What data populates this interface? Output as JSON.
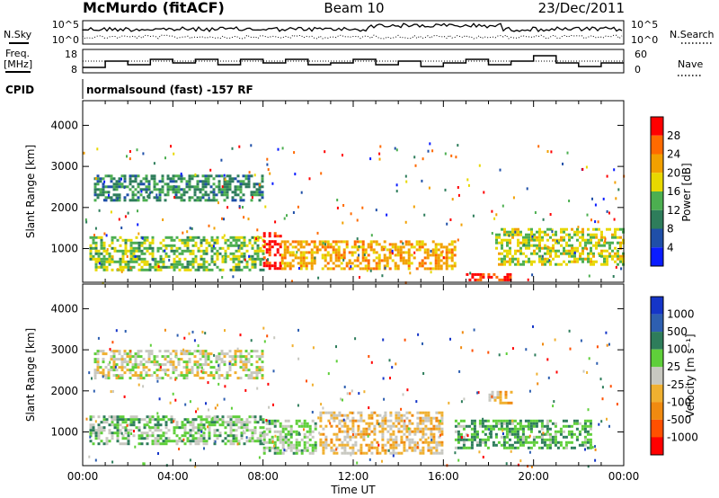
{
  "header": {
    "station": "McMurdo (fitACF)",
    "beam": "Beam 10",
    "date": "23/Dec/2011"
  },
  "noise_panel": {
    "left_label": "N.Sky",
    "left_ticks": [
      "10^5",
      "10^0"
    ],
    "right_label": "N.Search",
    "right_ticks": [
      "10^5",
      "10^0"
    ]
  },
  "freq_panel": {
    "left_label_1": "Freq.",
    "left_label_2": "[MHz]",
    "left_ticks": [
      "18",
      "8"
    ],
    "right_label": "Nave",
    "right_ticks": [
      "60",
      "0"
    ]
  },
  "cpid": {
    "label": "CPID",
    "value": "normalsound (fast) -157 RF"
  },
  "power_colorbar": {
    "title": "Power [dB]",
    "ticks": [
      "28",
      "24",
      "20",
      "16",
      "12",
      "8",
      "4"
    ],
    "colors": [
      "#ff0000",
      "#ff6a00",
      "#f2a000",
      "#e8d800",
      "#4caf50",
      "#2e7d5b",
      "#1f4fa8",
      "#0a1cff"
    ]
  },
  "velocity_colorbar": {
    "title": "Velocity [m s⁻¹]",
    "ticks": [
      "1000",
      "500",
      "100",
      "25",
      "-25",
      "-100",
      "-500",
      "-1000"
    ],
    "colors": [
      "#1535c8",
      "#2e5fb0",
      "#2e7d5b",
      "#5fcf3a",
      "#c8c8c0",
      "#f0b030",
      "#f08a10",
      "#ff5000",
      "#ff0000"
    ]
  },
  "axes": {
    "ylabel": "Slant Range [km]",
    "xlabel": "Time UT",
    "yticks": [
      "4000",
      "3000",
      "2000",
      "1000"
    ],
    "xticks": [
      "00:00",
      "04:00",
      "08:00",
      "12:00",
      "16:00",
      "20:00",
      "00:00"
    ]
  },
  "chart_data": [
    {
      "type": "heatmap",
      "title": "Power",
      "x_range_hours": [
        0,
        24
      ],
      "ylim": [
        180,
        4600
      ],
      "colorbar_range_db": [
        0,
        30
      ],
      "echo_regions": [
        {
          "t_start": 0.3,
          "t_end": 8.0,
          "r_low": 500,
          "r_high": 1300,
          "power_db": 14
        },
        {
          "t_start": 8.0,
          "t_end": 8.8,
          "r_low": 500,
          "r_high": 1400,
          "power_db": 29
        },
        {
          "t_start": 8.8,
          "t_end": 16.5,
          "r_low": 500,
          "r_high": 1200,
          "power_db": 20
        },
        {
          "t_start": 17.0,
          "t_end": 19.0,
          "r_low": 250,
          "r_high": 400,
          "power_db": 28
        },
        {
          "t_start": 0.5,
          "t_end": 8.0,
          "r_low": 2200,
          "r_high": 2800,
          "power_db": 10
        },
        {
          "t_start": 18.3,
          "t_end": 24.0,
          "r_low": 600,
          "r_high": 1500,
          "power_db": 16
        }
      ]
    },
    {
      "type": "heatmap",
      "title": "Velocity",
      "x_range_hours": [
        0,
        24
      ],
      "ylim": [
        180,
        4600
      ],
      "colorbar_range_ms": [
        -1000,
        1000
      ],
      "echo_regions": [
        {
          "t_start": 0.3,
          "t_end": 8.0,
          "r_low": 700,
          "r_high": 1400,
          "velocity_ms": 200
        },
        {
          "t_start": 8.0,
          "t_end": 10.3,
          "r_low": 500,
          "r_high": 1300,
          "velocity_ms": 150
        },
        {
          "t_start": 10.5,
          "t_end": 16.0,
          "r_low": 500,
          "r_high": 1500,
          "velocity_ms": -150
        },
        {
          "t_start": 0.5,
          "t_end": 8.0,
          "r_low": 2300,
          "r_high": 3000,
          "velocity_ms": 0
        },
        {
          "t_start": 16.5,
          "t_end": 22.5,
          "r_low": 600,
          "r_high": 1300,
          "velocity_ms": 300
        },
        {
          "t_start": 18.0,
          "t_end": 19.0,
          "r_low": 1700,
          "r_high": 2000,
          "velocity_ms": -200
        }
      ]
    }
  ]
}
